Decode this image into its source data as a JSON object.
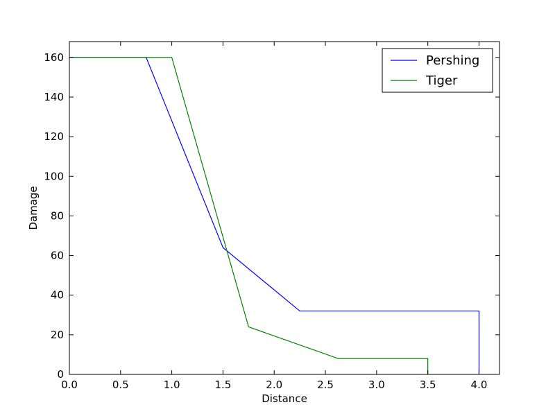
{
  "chart_data": {
    "type": "line",
    "title": "",
    "xlabel": "Distance",
    "ylabel": "Damage",
    "xlim": [
      0.0,
      4.2
    ],
    "ylim": [
      0,
      168
    ],
    "x_ticks": [
      0.0,
      0.5,
      1.0,
      1.5,
      2.0,
      2.5,
      3.0,
      3.5,
      4.0
    ],
    "x_tick_labels": [
      "0.0",
      "0.5",
      "1.0",
      "1.5",
      "2.0",
      "2.5",
      "3.0",
      "3.5",
      "4.0"
    ],
    "y_ticks": [
      0,
      20,
      40,
      60,
      80,
      100,
      120,
      140,
      160
    ],
    "y_tick_labels": [
      "0",
      "20",
      "40",
      "60",
      "80",
      "100",
      "120",
      "140",
      "160"
    ],
    "grid": false,
    "legend_position": "top-right",
    "series": [
      {
        "name": "Pershing",
        "color": "#0000ff",
        "x": [
          0.0,
          0.75,
          1.5,
          2.25,
          4.0,
          4.0
        ],
        "y": [
          160,
          160,
          64,
          32,
          32,
          0
        ]
      },
      {
        "name": "Tiger",
        "color": "#008000",
        "x": [
          0.0,
          1.0,
          1.75,
          2.625,
          3.5,
          3.5
        ],
        "y": [
          160,
          160,
          24,
          8,
          8,
          0
        ]
      }
    ]
  }
}
